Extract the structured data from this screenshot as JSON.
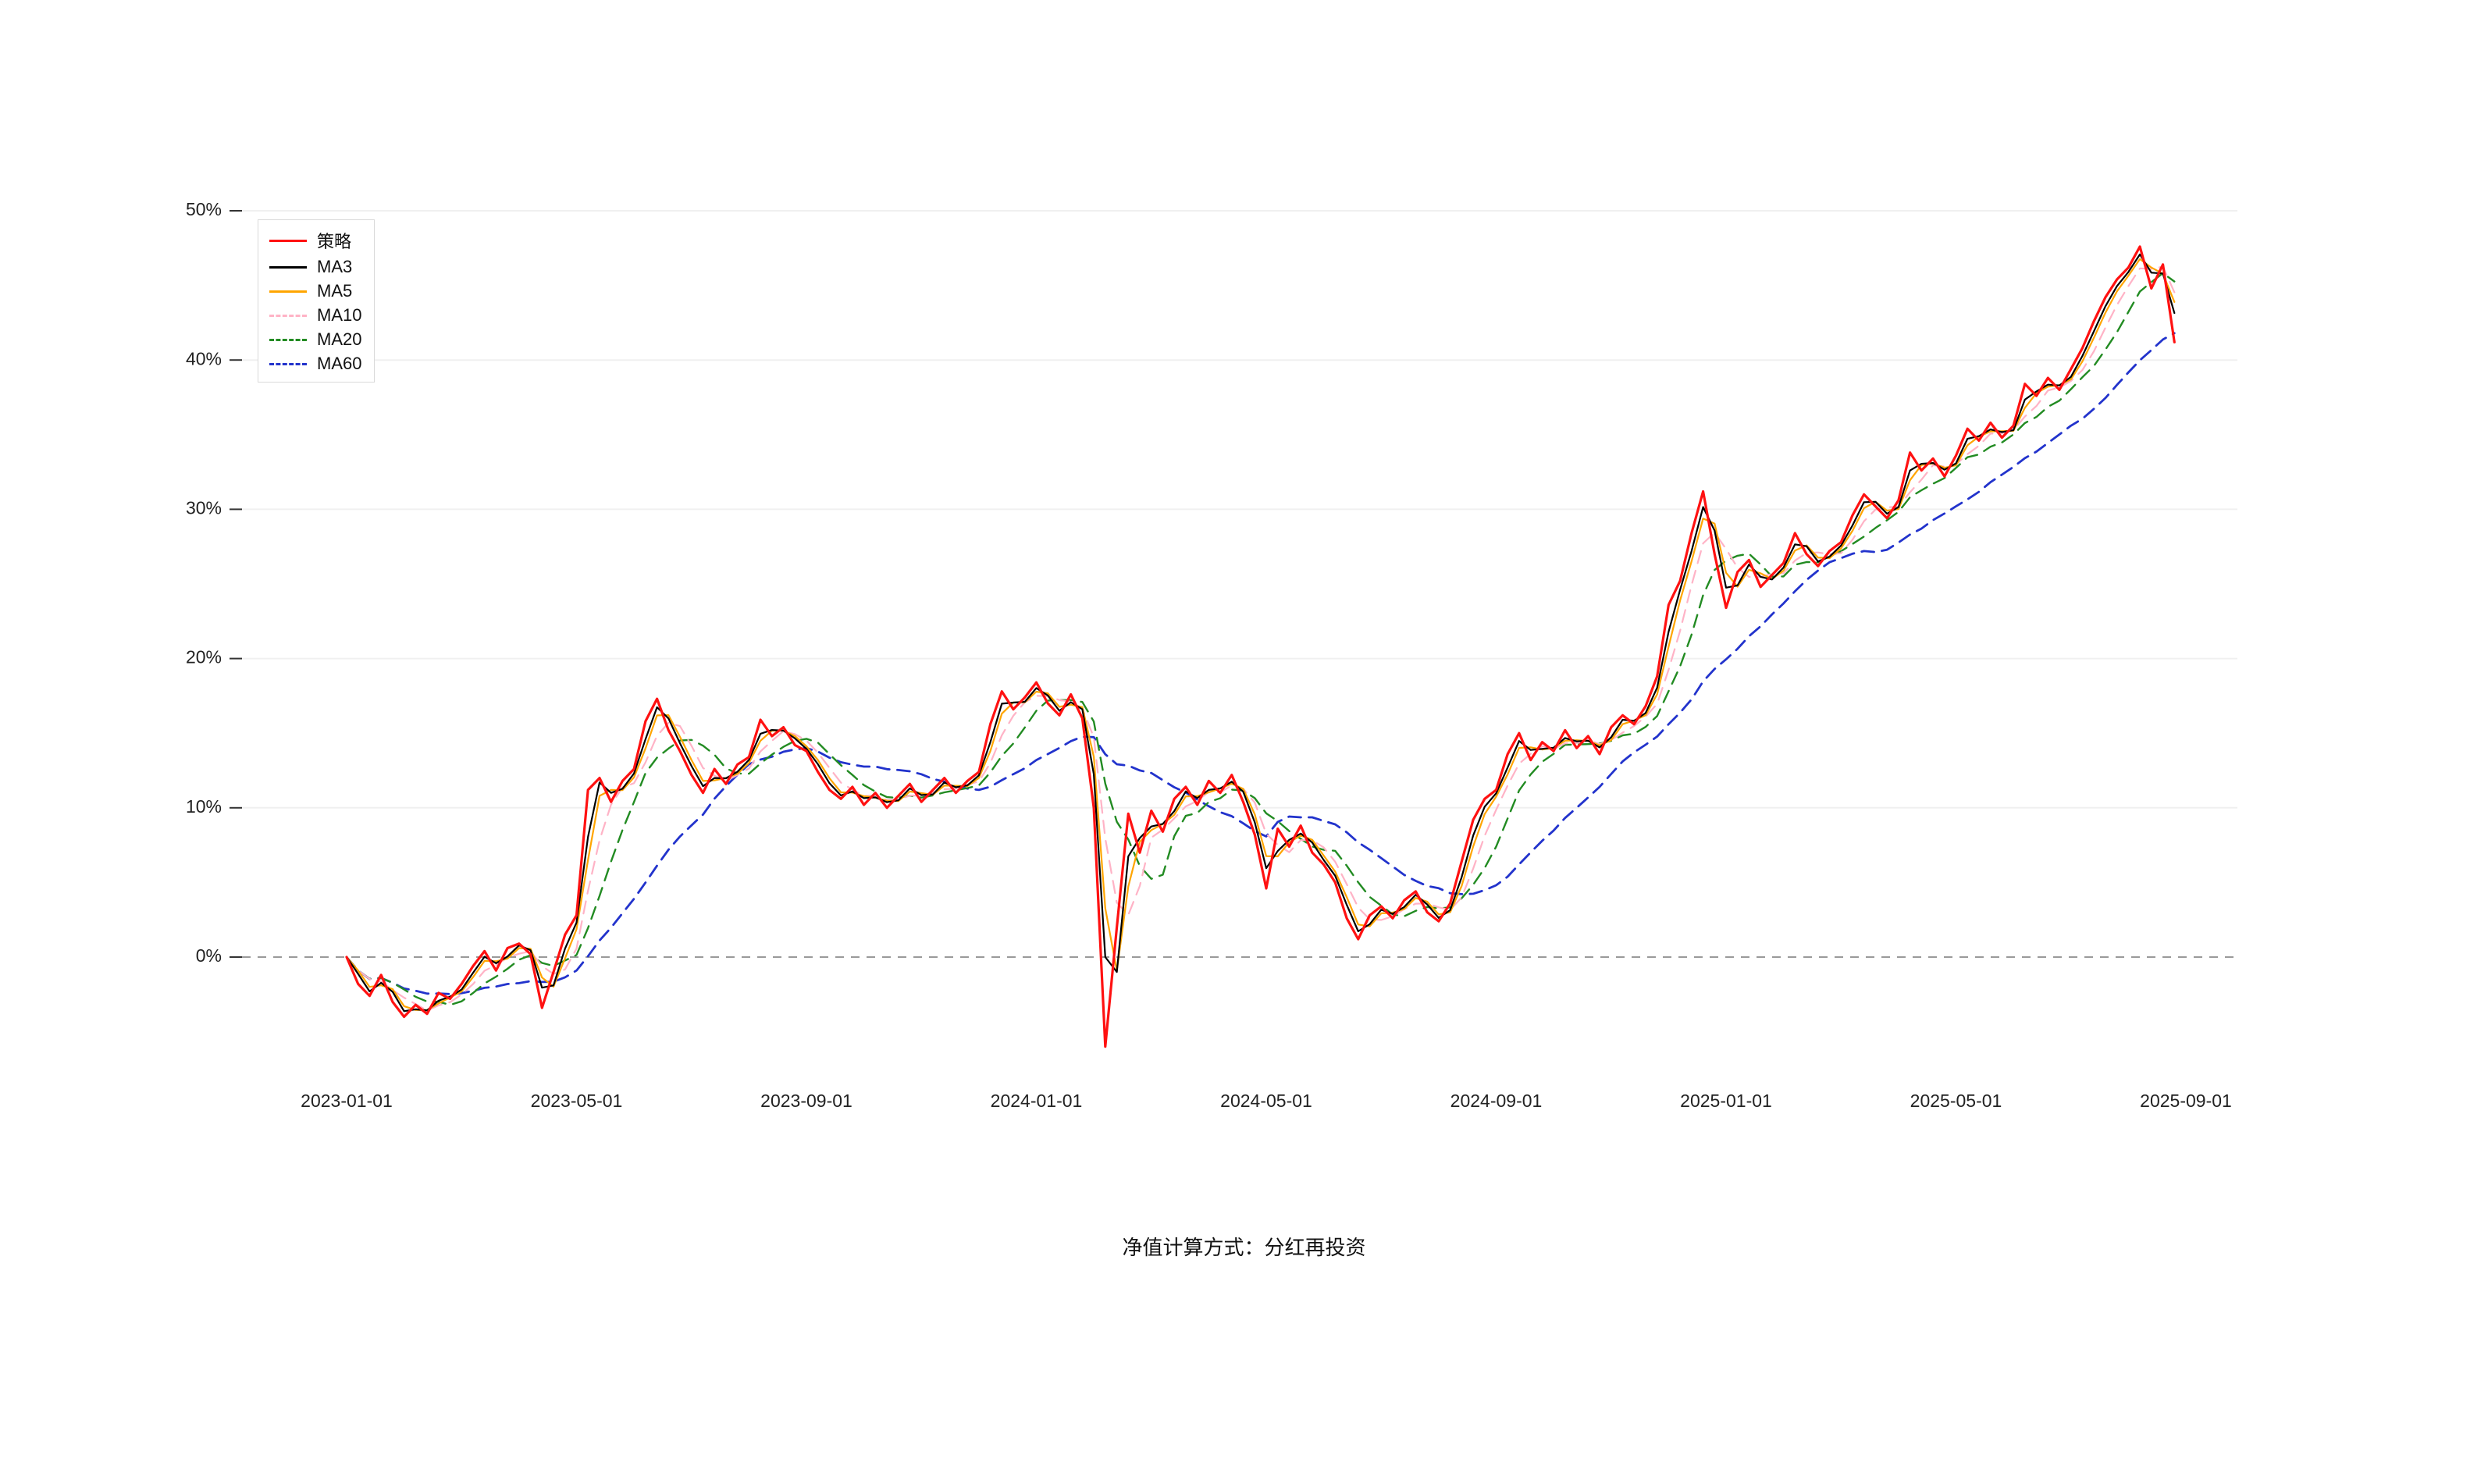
{
  "caption": "净值计算方式：分红再投资",
  "chart_data": {
    "type": "line",
    "title": "",
    "xlabel": "",
    "ylabel": "",
    "legend_position": "top-left",
    "grid": "faint-horizontal",
    "zero_line": 0,
    "y_ticks": [
      0,
      10,
      20,
      30,
      40,
      50
    ],
    "y_tick_suffix": "%",
    "ylim": [
      -7,
      51
    ],
    "x_tick_labels": [
      "2023-01-01",
      "2023-05-01",
      "2023-09-01",
      "2024-01-01",
      "2024-05-01",
      "2024-09-01",
      "2025-01-01",
      "2025-05-01",
      "2025-09-01"
    ],
    "x_tick_positions_months": [
      0,
      4,
      8,
      12,
      16,
      20,
      24,
      28,
      32
    ],
    "x_months_total": 32,
    "sample_points_per_month": 5,
    "series": [
      {
        "name": "策略",
        "color": "#ff1111",
        "dash": "none",
        "width": 3.2,
        "ma_window_samples": 1,
        "ma_days": 0
      },
      {
        "name": "MA3",
        "color": "#000000",
        "dash": "none",
        "width": 2.2,
        "ma_window_samples": 1.6,
        "ma_days": 3
      },
      {
        "name": "MA5",
        "color": "#ffa500",
        "dash": "none",
        "width": 2.2,
        "ma_window_samples": 2.2,
        "ma_days": 5
      },
      {
        "name": "MA10",
        "color": "#ffb3c6",
        "dash": "16 10",
        "width": 2.2,
        "ma_window_samples": 3.4,
        "ma_days": 10
      },
      {
        "name": "MA20",
        "color": "#228b22",
        "dash": "16 10",
        "width": 2.4,
        "ma_window_samples": 5.8,
        "ma_days": 20
      },
      {
        "name": "MA60",
        "color": "#2233cc",
        "dash": "16 10",
        "width": 2.8,
        "ma_window_samples": 15,
        "ma_days": 60
      }
    ],
    "strategy_values_pct": [
      0.0,
      -1.8,
      -2.6,
      -1.2,
      -3.0,
      -4.0,
      -3.2,
      -3.8,
      -2.4,
      -2.8,
      -1.8,
      -0.6,
      0.4,
      -0.9,
      0.6,
      0.9,
      0.2,
      -3.4,
      -1.0,
      1.5,
      2.8,
      11.2,
      12.0,
      10.4,
      11.8,
      12.6,
      15.8,
      17.3,
      15.2,
      13.8,
      12.2,
      11.0,
      12.6,
      11.6,
      12.9,
      13.4,
      15.9,
      14.8,
      15.4,
      14.2,
      13.8,
      12.4,
      11.2,
      10.6,
      11.4,
      10.2,
      11.0,
      10.0,
      10.8,
      11.6,
      10.4,
      11.2,
      12.0,
      11.0,
      11.8,
      12.4,
      15.6,
      17.8,
      16.6,
      17.4,
      18.4,
      17.0,
      16.2,
      17.6,
      16.0,
      10.0,
      -6.0,
      2.0,
      9.6,
      7.0,
      9.8,
      8.4,
      10.6,
      11.4,
      10.2,
      11.8,
      11.0,
      12.2,
      10.4,
      8.2,
      4.6,
      8.6,
      7.4,
      8.8,
      7.0,
      6.2,
      5.0,
      2.6,
      1.2,
      2.8,
      3.4,
      2.6,
      3.8,
      4.4,
      3.0,
      2.4,
      3.6,
      6.4,
      9.2,
      10.6,
      11.2,
      13.6,
      15.0,
      13.2,
      14.4,
      13.8,
      15.2,
      14.0,
      14.8,
      13.6,
      15.4,
      16.2,
      15.6,
      16.8,
      18.8,
      23.6,
      25.2,
      28.4,
      31.2,
      27.0,
      23.4,
      25.8,
      26.6,
      24.8,
      25.6,
      26.4,
      28.4,
      27.0,
      26.2,
      27.2,
      27.8,
      29.6,
      31.0,
      30.2,
      29.4,
      30.6,
      33.8,
      32.6,
      33.4,
      32.2,
      33.6,
      35.4,
      34.6,
      35.8,
      34.8,
      35.6,
      38.4,
      37.6,
      38.8,
      38.0,
      39.4,
      40.8,
      42.6,
      44.2,
      45.4,
      46.2,
      47.6,
      44.8,
      46.4,
      41.2
    ]
  }
}
